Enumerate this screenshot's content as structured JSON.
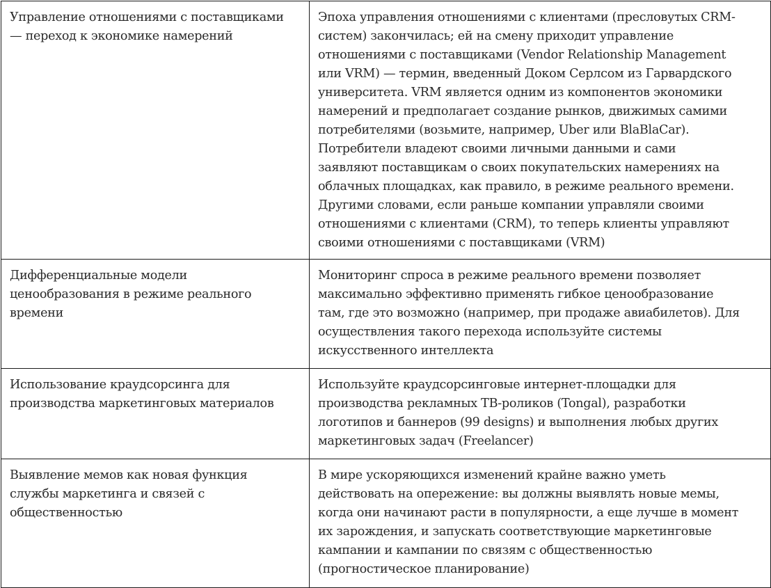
{
  "rows": [
    {
      "topic": "Управление отношениями с поставщиками\n— переход к экономике намерений",
      "description": "Эпоха управления отношениями с клиентами (пресловутых CRM-\nсистем) закончилась; ей на смену приходит управление\nотношениями с поставщиками (Vendor Relationship Management\nили VRM) — термин, введенный Доком Серлсом из Гарвардского\nуниверситета. VRM является одним из компонентов экономики\nнамерений и предполагает создание рынков, движимых самими\nпотребителями (возьмите, например, Uber или BlaBlaCar).\nПотребители владеют своими личными данными и сами\nзаявляют поставщикам о своих покупательских намерениях на\nоблачных площадках, как правило, в режиме реального времени.\nДругими словами, если раньше компании управляли своими\nотношениями с клиентами (CRM), то теперь клиенты управляют\nсвоими отношениями с поставщиками (VRM)"
    },
    {
      "topic": "Дифференциальные модели\nценообразования в режиме реального\nвремени",
      "description": "Мониторинг спроса в режиме реального времени позволяет\nмаксимально эффективно применять гибкое ценообразование\nтам, где это возможно (например, при продаже авиабилетов). Для\nосуществления такого перехода используйте системы\nискусственного интеллекта"
    },
    {
      "topic": "Использование краудсорсинга для\nпроизводства маркетинговых материалов",
      "description": "Используйте краудсорсинговые интернет-площадки для\nпроизводства рекламных ТВ-роликов (Tongal), разработки\nлоготипов и баннеров (99 designs) и выполнения любых других\nмаркетинговых задач (Freelancer)"
    },
    {
      "topic": "Выявление мемов как новая функция\nслужбы маркетинга и связей с\nобщественностью",
      "description": "В мире ускоряющихся изменений крайне важно уметь\nдействовать на опережение: вы должны выявлять новые мемы,\nкогда они начинают расти в популярности, а еще лучше в момент\nих зарождения, и запускать соответствующие маркетинговые\nкампании и кампании по связям с общественностью\n(прогностическое планирование)"
    }
  ]
}
